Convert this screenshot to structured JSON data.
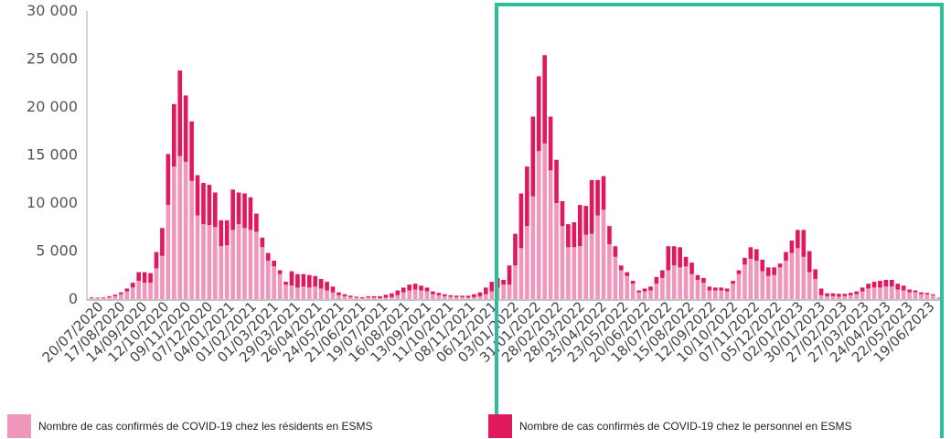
{
  "colors": {
    "residents": "#f196bb",
    "staff": "#e0185d",
    "highlight": "#2bbf9e",
    "axis": "#888888",
    "text": "#444444"
  },
  "legend": {
    "residents_label": "Nombre de cas confirmés de COVID-19 chez les résidents en ESMS",
    "staff_label": "Nombre de cas confirmés de COVID-19 chez le personnel en ESMS"
  },
  "chart_data": {
    "type": "bar",
    "stacked": true,
    "ylim": [
      0,
      30000
    ],
    "yticks": [
      0,
      5000,
      10000,
      15000,
      20000,
      25000,
      30000
    ],
    "ytick_labels": [
      "0",
      "5 000",
      "10 000",
      "15 000",
      "20 000",
      "25 000",
      "30 000"
    ],
    "xtick_labels": [
      "20/07/2020",
      "17/08/2020",
      "14/09/2020",
      "12/10/2020",
      "09/11/2020",
      "07/12/2020",
      "04/01/2021",
      "01/02/2021",
      "01/03/2021",
      "29/03/2021",
      "26/04/2021",
      "24/05/2021",
      "21/06/2021",
      "19/07/2021",
      "16/08/2021",
      "13/09/2021",
      "11/10/2021",
      "08/11/2021",
      "06/12/2021",
      "03/01/2022",
      "31/01/2022",
      "28/02/2022",
      "28/03/2022",
      "25/04/2022",
      "23/05/2022",
      "20/06/2022",
      "18/07/2022",
      "15/08/2022",
      "12/09/2022",
      "10/10/2022",
      "07/11/2022",
      "05/12/2022",
      "02/01/2023",
      "30/01/2023",
      "27/02/2023",
      "27/03/2023",
      "24/04/2023",
      "22/05/2023",
      "19/06/2023"
    ],
    "series": [
      {
        "name": "Nombre de cas confirmés de COVID-19 chez les résidents en ESMS",
        "values": [
          150,
          100,
          150,
          200,
          300,
          500,
          800,
          1200,
          1900,
          1700,
          1700,
          3200,
          4500,
          9800,
          13800,
          14900,
          14300,
          12300,
          8700,
          7800,
          7700,
          7500,
          5500,
          5600,
          7200,
          7800,
          7400,
          7200,
          7000,
          5400,
          4000,
          3400,
          2600,
          1500,
          1400,
          1200,
          1300,
          1200,
          1300,
          1100,
          900,
          700,
          400,
          300,
          200,
          150,
          100,
          200,
          150,
          100,
          150,
          200,
          400,
          700,
          900,
          1000,
          900,
          800,
          500,
          400,
          300,
          250,
          200,
          200,
          150,
          200,
          300,
          500,
          800,
          1200,
          1500,
          1500,
          3500,
          5300,
          7600,
          10700,
          15400,
          16200,
          13400,
          10000,
          7600,
          5400,
          5400,
          5500,
          6700,
          6800,
          8700,
          9300,
          5700,
          4400,
          3000,
          2400,
          1600,
          700,
          800,
          900,
          1600,
          2200,
          3000,
          3500,
          3300,
          3400,
          2600,
          2000,
          1700,
          900,
          900,
          900,
          800,
          1600,
          2600,
          3600,
          4200,
          4000,
          2900,
          2400,
          2500,
          3300,
          4000,
          4800,
          5300,
          4400,
          2800,
          2100,
          400,
          300,
          300,
          250,
          300,
          400,
          500,
          800,
          1100,
          1200,
          1200,
          1300,
          1300,
          1000,
          900,
          700,
          700,
          500,
          500,
          400,
          200
        ]
      },
      {
        "name": "Nombre de cas confirmés de COVID-19 chez le personnel en ESMS",
        "values": [
          50,
          50,
          50,
          100,
          150,
          200,
          300,
          500,
          900,
          1100,
          1000,
          1700,
          2900,
          5300,
          6500,
          8900,
          6900,
          6200,
          4200,
          4300,
          4200,
          3600,
          2700,
          2600,
          4200,
          3300,
          3600,
          3400,
          1900,
          1000,
          800,
          600,
          400,
          300,
          1500,
          1400,
          1300,
          1300,
          1100,
          1000,
          900,
          600,
          300,
          200,
          150,
          100,
          100,
          100,
          150,
          200,
          300,
          400,
          500,
          500,
          600,
          600,
          500,
          400,
          300,
          250,
          200,
          150,
          150,
          150,
          200,
          300,
          400,
          700,
          1000,
          1000,
          500,
          2000,
          3300,
          5700,
          6200,
          8300,
          7800,
          9200,
          5600,
          4500,
          2600,
          2400,
          2600,
          4300,
          3000,
          5600,
          3700,
          3500,
          1900,
          1100,
          500,
          400,
          300,
          200,
          300,
          400,
          700,
          800,
          2500,
          2000,
          2100,
          1000,
          1200,
          500,
          500,
          400,
          300,
          300,
          300,
          300,
          400,
          700,
          1200,
          1200,
          1200,
          900,
          800,
          400,
          900,
          1300,
          1900,
          2800,
          2200,
          1000,
          700,
          300,
          300,
          300,
          250,
          250,
          300,
          400,
          500,
          600,
          700,
          700,
          700,
          600,
          500,
          300,
          200,
          200,
          150,
          100
        ]
      }
    ]
  }
}
